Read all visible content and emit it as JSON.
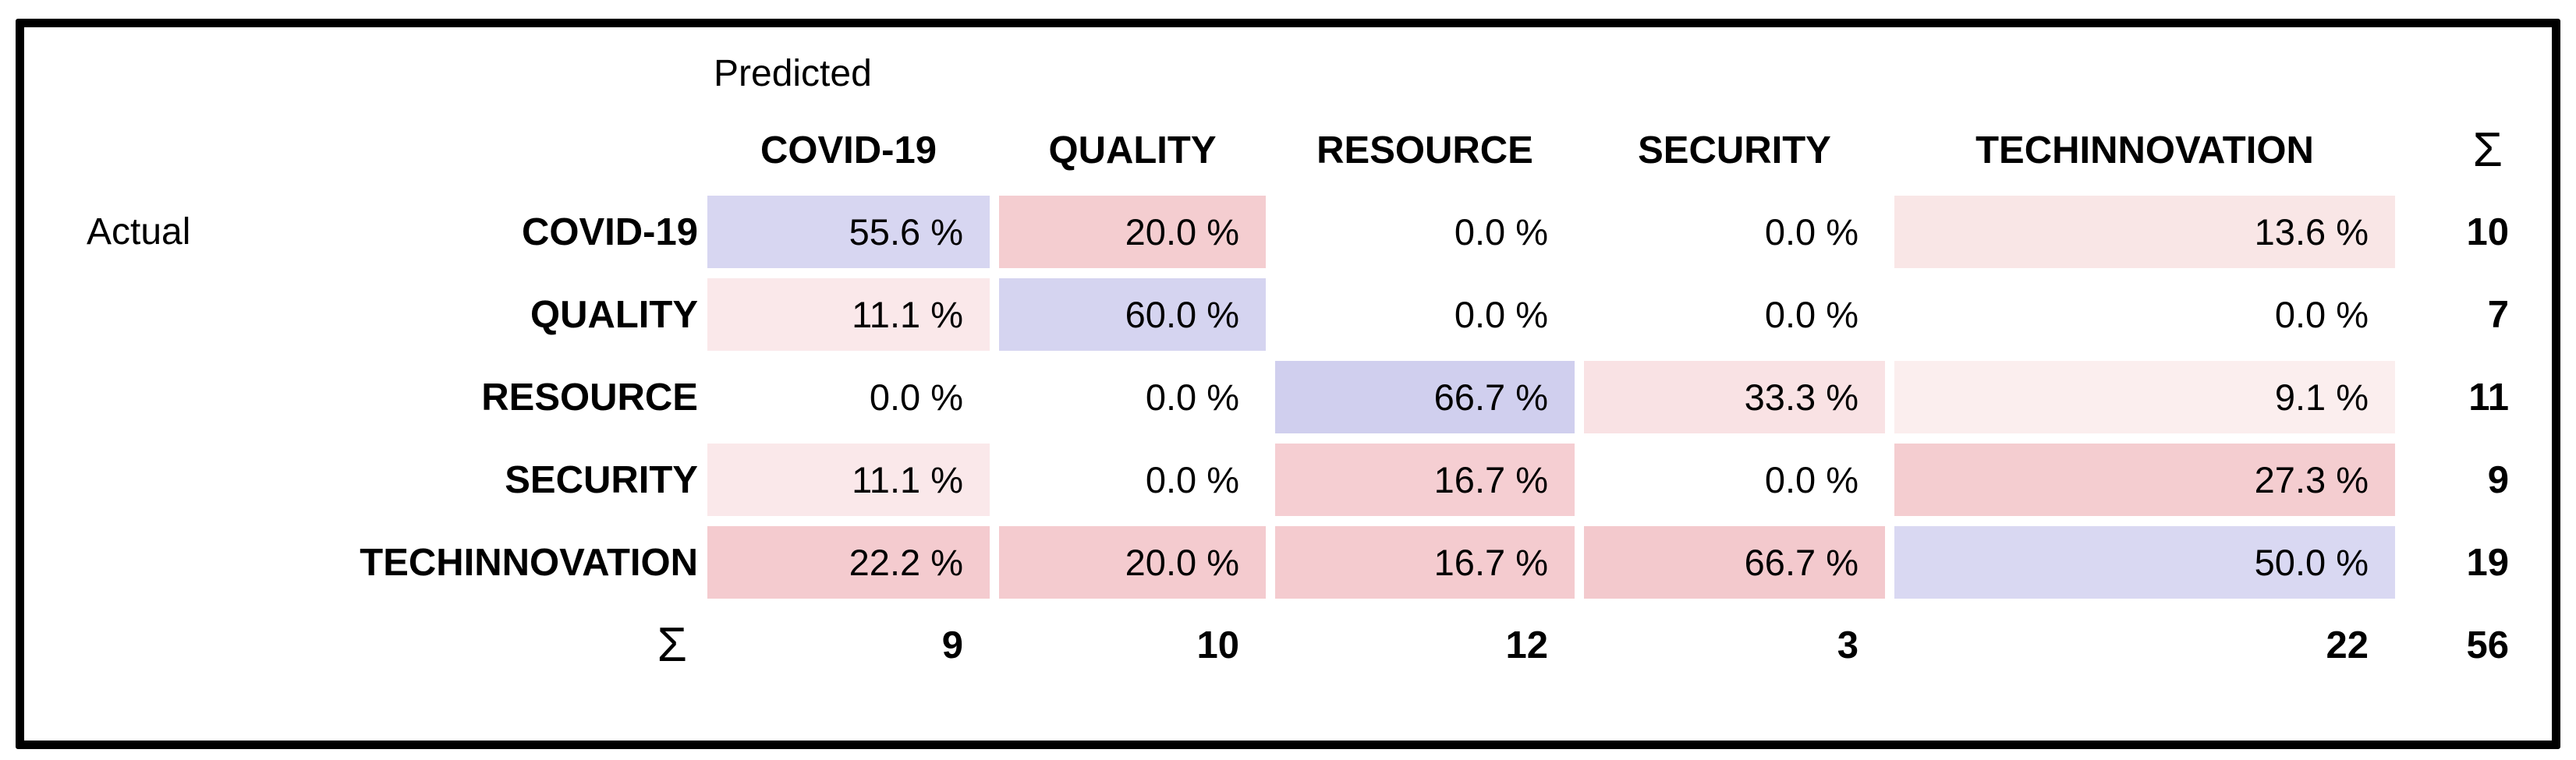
{
  "frame": {
    "border_color": "#000000",
    "background_color": "#ffffff",
    "positive_cell_color": "#d7d6f1",
    "negative_cell_color": "#f4cdd0"
  },
  "chart_data": {
    "type": "heatmap",
    "x_axis_label": "Predicted",
    "y_axis_label": "Actual",
    "sum_symbol": "Σ",
    "columns": [
      "COVID-19",
      "QUALITY",
      "RESOURCE",
      "SECURITY",
      "TECHINNOVATION"
    ],
    "rows": [
      {
        "label": "COVID-19",
        "cells": [
          {
            "text": "55.6 %",
            "value": 55.6,
            "bg": "#d7d6f1"
          },
          {
            "text": "20.0 %",
            "value": 20.0,
            "bg": "#f4cdd0"
          },
          {
            "text": "0.0 %",
            "value": 0.0,
            "bg": null
          },
          {
            "text": "0.0 %",
            "value": 0.0,
            "bg": null
          },
          {
            "text": "13.6 %",
            "value": 13.6,
            "bg": "#f9e6e6"
          }
        ],
        "row_sum": "10"
      },
      {
        "label": "QUALITY",
        "cells": [
          {
            "text": "11.1 %",
            "value": 11.1,
            "bg": "#fae8ea"
          },
          {
            "text": "60.0 %",
            "value": 60.0,
            "bg": "#d5d4f0"
          },
          {
            "text": "0.0 %",
            "value": 0.0,
            "bg": null
          },
          {
            "text": "0.0 %",
            "value": 0.0,
            "bg": null
          },
          {
            "text": "0.0 %",
            "value": 0.0,
            "bg": null
          }
        ],
        "row_sum": "7"
      },
      {
        "label": "RESOURCE",
        "cells": [
          {
            "text": "0.0 %",
            "value": 0.0,
            "bg": null
          },
          {
            "text": "0.0 %",
            "value": 0.0,
            "bg": null
          },
          {
            "text": "66.7 %",
            "value": 66.7,
            "bg": "#d0cfee"
          },
          {
            "text": "33.3 %",
            "value": 33.3,
            "bg": "#f9e2e4"
          },
          {
            "text": "9.1 %",
            "value": 9.1,
            "bg": "#fbeeee"
          }
        ],
        "row_sum": "11"
      },
      {
        "label": "SECURITY",
        "cells": [
          {
            "text": "11.1 %",
            "value": 11.1,
            "bg": "#fae8ea"
          },
          {
            "text": "0.0 %",
            "value": 0.0,
            "bg": null
          },
          {
            "text": "16.7 %",
            "value": 16.7,
            "bg": "#f5ced2"
          },
          {
            "text": "0.0 %",
            "value": 0.0,
            "bg": null
          },
          {
            "text": "27.3 %",
            "value": 27.3,
            "bg": "#f4cdd0"
          }
        ],
        "row_sum": "9"
      },
      {
        "label": "TECHINNOVATION",
        "cells": [
          {
            "text": "22.2 %",
            "value": 22.2,
            "bg": "#f4cbcf"
          },
          {
            "text": "20.0 %",
            "value": 20.0,
            "bg": "#f4cbcf"
          },
          {
            "text": "16.7 %",
            "value": 16.7,
            "bg": "#f4cbcf"
          },
          {
            "text": "66.7 %",
            "value": 66.7,
            "bg": "#f3c9cd"
          },
          {
            "text": "50.0 %",
            "value": 50.0,
            "bg": "#d9d8f2"
          }
        ],
        "row_sum": "19"
      }
    ],
    "column_sums": [
      "9",
      "10",
      "12",
      "3",
      "22"
    ],
    "grand_total": "56"
  }
}
